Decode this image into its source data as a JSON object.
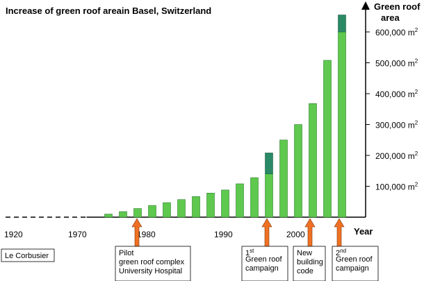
{
  "chart_data": {
    "type": "bar",
    "title": "Increase of green roof areain Basel, Switzerland",
    "ytitle": [
      "Green roof",
      "area"
    ],
    "xlabel": "Year",
    "unit": "m",
    "unit_exp": "2",
    "x_ticks": [
      1920,
      1970,
      1980,
      1990,
      2000
    ],
    "y_ticks": [
      "100,000",
      "200,000",
      "300,000",
      "400,000",
      "500,000",
      "600,000"
    ],
    "y_tick_values": [
      100000,
      200000,
      300000,
      400000,
      500000,
      600000
    ],
    "ylim": [
      0,
      700000
    ],
    "colors": {
      "light": "#5ec94e",
      "dark": "#2b8a66",
      "arrow": "#f07023",
      "axis": "#000000"
    },
    "series": [
      {
        "name": "",
        "x": [
          1974,
          1976,
          1978,
          1980,
          1982,
          1984,
          1986,
          1988,
          1990,
          1992,
          1994,
          1996,
          1998,
          2000,
          2002,
          2004,
          2006
        ],
        "values": [
          10000,
          18000,
          28000,
          38000,
          47000,
          57000,
          67000,
          78000,
          88000,
          108000,
          128000,
          140000,
          250000,
          300000,
          368000,
          508000,
          600000
        ]
      },
      {
        "name": "",
        "x": [
          1996,
          2006
        ],
        "values": [
          68000,
          55000
        ]
      }
    ],
    "markers": [
      {
        "year": 1928,
        "label": [
          "Le Corbusier"
        ],
        "arrow": false
      },
      {
        "year": 1977,
        "label": [
          "Pilot",
          "green roof complex",
          "University Hospital"
        ],
        "arrow": true
      },
      {
        "year": 1996,
        "label": [
          "1",
          "Green roof",
          "campaign"
        ],
        "sup": "st",
        "arrow": true
      },
      {
        "year": 2002,
        "label": [
          "New",
          "building",
          "code"
        ],
        "arrow": true
      },
      {
        "year": 2006,
        "label": [
          "2",
          "Green roof",
          "campaign"
        ],
        "sup": "nd",
        "arrow": true
      }
    ]
  }
}
